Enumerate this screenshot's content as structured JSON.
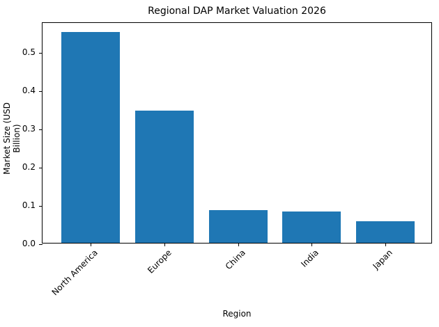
{
  "chart_data": {
    "type": "bar",
    "title": "Regional DAP Market Valuation 2026",
    "xlabel": "Region",
    "ylabel": "Market Size (USD Billion)",
    "categories": [
      "North America",
      "Europe",
      "China",
      "India",
      "Japan"
    ],
    "values": [
      0.551,
      0.346,
      0.086,
      0.081,
      0.057
    ],
    "ylim": [
      0,
      0.578
    ],
    "yticks": [
      "0.0",
      "0.1",
      "0.2",
      "0.3",
      "0.4",
      "0.5"
    ],
    "bar_color": "#1f77b4",
    "grid": false,
    "legend": null
  }
}
